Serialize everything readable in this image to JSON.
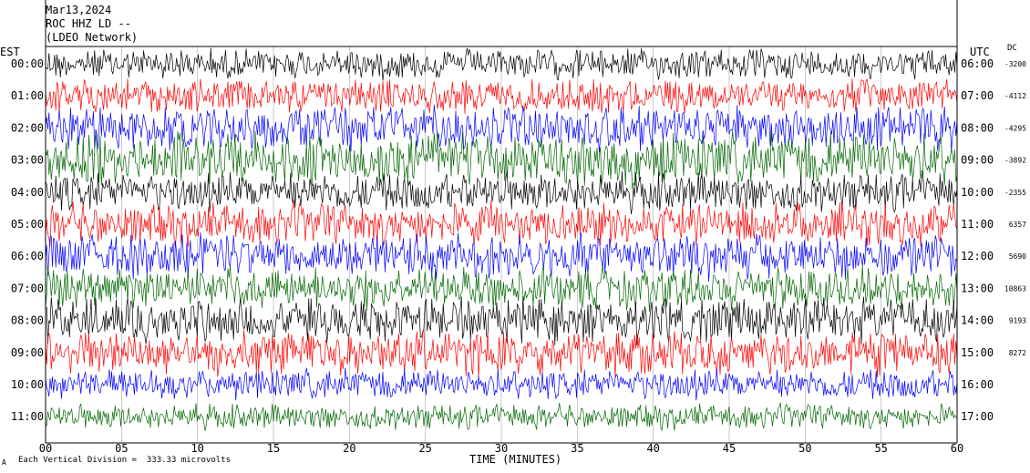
{
  "header": {
    "date": "Mar13,2024",
    "station": "ROC HHZ LD --",
    "network": "(LDEO Network)"
  },
  "left_axis_title": "EST",
  "right_axis_title": "UTC",
  "dc_title": "DC",
  "footer": "Each Vertical Division =  333.33 microvolts",
  "mini_mark": "A",
  "colors": {
    "black": "#000000",
    "red": "#ff0000",
    "blue": "#0000ff",
    "green": "#006600",
    "grid": "#000000"
  },
  "chart_data": {
    "type": "line",
    "xlabel": "TIME (MINUTES)",
    "xlim": [
      0,
      60
    ],
    "x_ticks": [
      "00",
      "05",
      "10",
      "15",
      "20",
      "25",
      "30",
      "35",
      "40",
      "45",
      "50",
      "55",
      "60"
    ],
    "rows_est": [
      "00:00",
      "01:00",
      "02:00",
      "03:00",
      "04:00",
      "05:00",
      "06:00",
      "07:00",
      "08:00",
      "09:00",
      "10:00",
      "11:00"
    ],
    "rows_utc": [
      "06:00",
      "07:00",
      "08:00",
      "09:00",
      "10:00",
      "11:00",
      "12:00",
      "13:00",
      "14:00",
      "15:00",
      "16:00",
      "17:00"
    ],
    "dc_offsets": [
      "-3200",
      "-4112",
      "-4295",
      "-3892",
      "-2355",
      "6357",
      "5690",
      "10863",
      "9193",
      "8272",
      "",
      ""
    ],
    "trace_colors": [
      "black",
      "red",
      "blue",
      "green",
      "black",
      "red",
      "blue",
      "green",
      "black",
      "red",
      "blue",
      "green"
    ],
    "trace_amplitude": [
      0.55,
      0.6,
      0.8,
      0.95,
      0.7,
      0.75,
      0.8,
      0.75,
      0.8,
      0.8,
      0.55,
      0.45
    ]
  }
}
